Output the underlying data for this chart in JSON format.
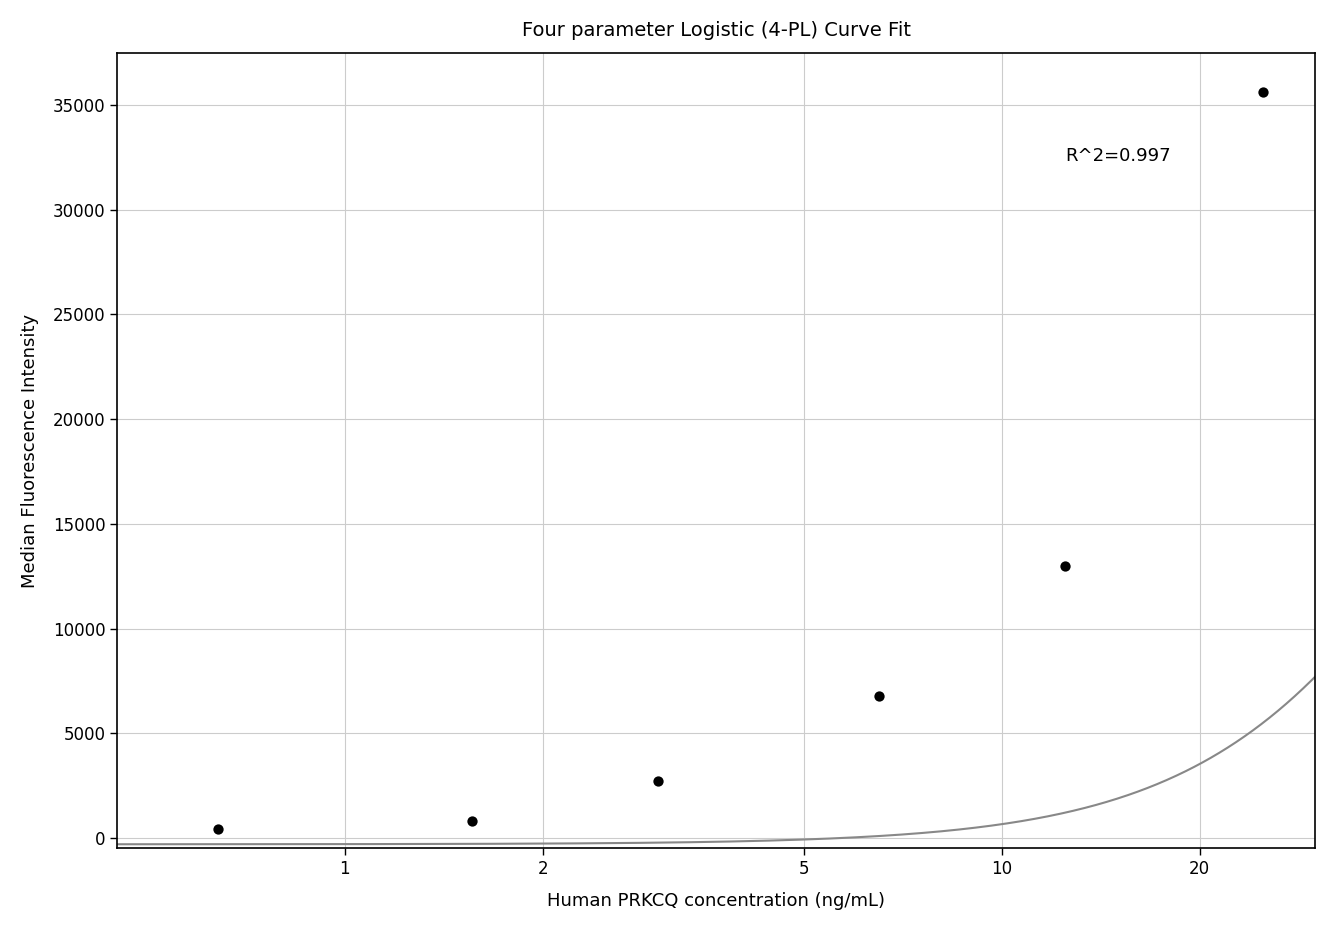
{
  "title": "Four parameter Logistic (4-PL) Curve Fit",
  "xlabel": "Human PRKCQ concentration (ng/mL)",
  "ylabel": "Median Fluorescence Intensity",
  "scatter_x": [
    0.64,
    1.56,
    3.0,
    6.5,
    12.5,
    25.0
  ],
  "scatter_y": [
    450,
    800,
    2700,
    6800,
    13000,
    35600
  ],
  "r_squared": "R^2=0.997",
  "r_squared_x": 12.5,
  "r_squared_y": 33000,
  "xlim_left": 0.45,
  "xlim_right": 30.0,
  "ylim": [
    -500,
    37500
  ],
  "yticks": [
    0,
    5000,
    10000,
    15000,
    20000,
    25000,
    30000,
    35000
  ],
  "xticks": [
    1,
    2,
    5,
    10,
    20
  ],
  "curve_color": "#888888",
  "scatter_color": "#000000",
  "grid_color": "#cccccc",
  "background_color": "#ffffff",
  "title_fontsize": 14,
  "axis_label_fontsize": 13,
  "tick_fontsize": 12,
  "annotation_fontsize": 13,
  "4pl_A": -300,
  "4pl_B": 2.1,
  "4pl_C": 60.0,
  "4pl_D": 42000
}
